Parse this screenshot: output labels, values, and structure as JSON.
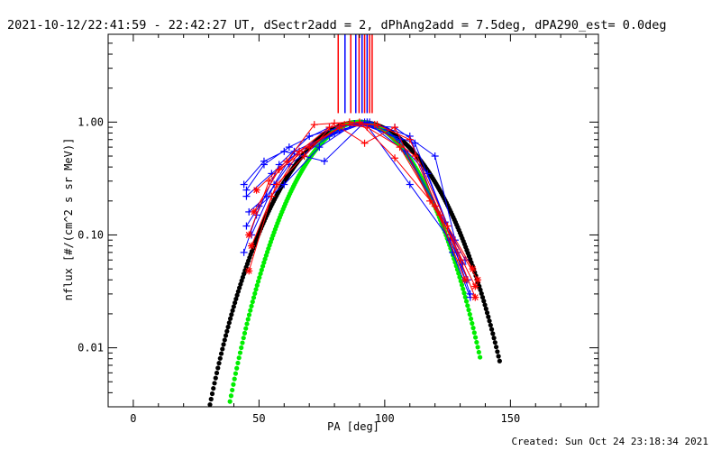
{
  "header": {
    "title": "2021-10-12/22:41:59 - 22:42:27 UT, dSectr2add = 2, dPhAng2add = 7.5deg, dPA290_est=  0.0deg"
  },
  "footer": {
    "created": "Created: Sun Oct 24 23:18:34 2021"
  },
  "colors": {
    "blue": "#0000ff",
    "red": "#ff0000",
    "black_fit": "#000000",
    "green_fit": "#00ee00",
    "axis": "#000000"
  },
  "chart_data": {
    "type": "scatter",
    "title": "2021-10-12/22:41:59 - 22:42:27 UT, dSectr2add = 2, dPhAng2add = 7.5deg, dPA290_est=  0.0deg",
    "xlabel": "PA [deg]",
    "ylabel": "nflux [#/(cm^2 s sr MeV)]",
    "xlim": [
      -10,
      185
    ],
    "ylim": [
      0.003,
      6.0
    ],
    "yscale": "log",
    "grid": false,
    "x_ticks": [
      0,
      50,
      100,
      150
    ],
    "x_tick_labels": [
      "0",
      "50",
      "100",
      "150"
    ],
    "y_ticks": [
      0.01,
      0.1,
      1.0
    ],
    "y_tick_labels": [
      "0.01",
      "0.10",
      "1.00"
    ],
    "fits": [
      {
        "color": "black",
        "function": "sin_power",
        "n": 8.5,
        "x_range": [
          26,
          146
        ]
      },
      {
        "color": "green",
        "function": "sin_power",
        "n": 12,
        "x_range": [
          20,
          138
        ]
      }
    ],
    "vertical_markers": [
      {
        "x": 81.5,
        "color": "red"
      },
      {
        "x": 84.2,
        "color": "blue"
      },
      {
        "x": 86.5,
        "color": "red"
      },
      {
        "x": 88.5,
        "color": "blue"
      },
      {
        "x": 89.8,
        "color": "red"
      },
      {
        "x": 91.0,
        "color": "blue"
      },
      {
        "x": 92.0,
        "color": "red"
      },
      {
        "x": 93.0,
        "color": "blue"
      },
      {
        "x": 94.0,
        "color": "red"
      },
      {
        "x": 95.0,
        "color": "red"
      }
    ],
    "series": [
      {
        "color": "blue",
        "x": [
          44,
          52,
          60,
          76,
          92,
          110,
          126,
          133
        ],
        "y": [
          0.28,
          0.45,
          0.55,
          0.45,
          1.0,
          0.28,
          0.09,
          0.04
        ]
      },
      {
        "color": "blue",
        "x": [
          45,
          55,
          66,
          80,
          91,
          106,
          124,
          132
        ],
        "y": [
          0.22,
          0.35,
          0.55,
          0.8,
          0.98,
          0.7,
          0.13,
          0.06
        ]
      },
      {
        "color": "blue",
        "x": [
          46,
          53,
          62,
          78,
          93,
          108,
          126,
          134
        ],
        "y": [
          0.16,
          0.22,
          0.42,
          0.75,
          1.0,
          0.55,
          0.1,
          0.03
        ]
      },
      {
        "color": "blue",
        "x": [
          45,
          50,
          60,
          74,
          88,
          101,
          117,
          131
        ],
        "y": [
          0.12,
          0.18,
          0.28,
          0.6,
          0.97,
          0.85,
          0.35,
          0.055
        ]
      },
      {
        "color": "blue",
        "x": [
          44,
          49,
          58,
          70,
          86,
          104,
          120,
          128
        ],
        "y": [
          0.07,
          0.15,
          0.42,
          0.75,
          0.95,
          0.9,
          0.5,
          0.09
        ]
      },
      {
        "color": "blue",
        "x": [
          47,
          56,
          64,
          82,
          94,
          110,
          127,
          134
        ],
        "y": [
          0.1,
          0.28,
          0.55,
          0.85,
          1.0,
          0.75,
          0.07,
          0.028
        ]
      },
      {
        "color": "blue",
        "x": [
          45,
          52,
          62,
          78,
          90,
          112,
          129
        ],
        "y": [
          0.25,
          0.42,
          0.6,
          0.9,
          0.97,
          0.65,
          0.07
        ]
      },
      {
        "color": "red",
        "x": [
          46,
          55,
          66,
          78,
          90,
          104,
          120,
          132
        ],
        "y": [
          0.048,
          0.22,
          0.55,
          0.9,
          1.0,
          0.48,
          0.18,
          0.04
        ]
      },
      {
        "color": "red",
        "x": [
          47,
          57,
          68,
          80,
          93,
          106,
          122,
          136
        ],
        "y": [
          0.08,
          0.28,
          0.5,
          0.98,
          0.9,
          0.6,
          0.15,
          0.035
        ]
      },
      {
        "color": "red",
        "x": [
          48,
          58,
          70,
          84,
          97,
          110,
          125,
          135
        ],
        "y": [
          0.16,
          0.38,
          0.6,
          0.95,
          0.95,
          0.7,
          0.12,
          0.05
        ]
      },
      {
        "color": "red",
        "x": [
          46,
          54,
          66,
          82,
          92,
          104,
          118,
          137
        ],
        "y": [
          0.1,
          0.3,
          0.55,
          0.9,
          0.65,
          0.9,
          0.2,
          0.04
        ]
      },
      {
        "color": "red",
        "x": [
          49,
          61,
          72,
          86,
          96,
          112,
          130,
          136
        ],
        "y": [
          0.25,
          0.45,
          0.95,
          1.0,
          0.95,
          0.5,
          0.06,
          0.028
        ]
      }
    ]
  }
}
